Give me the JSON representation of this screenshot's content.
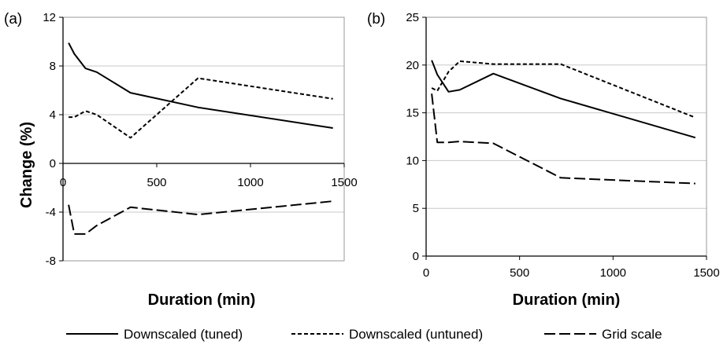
{
  "legend": {
    "items": [
      {
        "label": "Downscaled (tuned)",
        "dash": "solid"
      },
      {
        "label": "Downscaled (untuned)",
        "dash": "short"
      },
      {
        "label": "Grid scale",
        "dash": "long"
      }
    ]
  },
  "chart_data": [
    {
      "type": "line",
      "panel_label": "(a)",
      "xlabel": "Duration (min)",
      "ylabel": "Change (%)",
      "xlim": [
        0,
        1500
      ],
      "ylim": [
        -8,
        12
      ],
      "xticks": [
        0,
        500,
        1000,
        1500
      ],
      "yticks": [
        -8,
        -4,
        0,
        4,
        8,
        12
      ],
      "grid": true,
      "series": [
        {
          "name": "Downscaled (tuned)",
          "dash": "solid",
          "x": [
            30,
            60,
            120,
            180,
            360,
            720,
            1440
          ],
          "y": [
            9.9,
            9.0,
            7.8,
            7.5,
            5.8,
            4.6,
            2.9
          ]
        },
        {
          "name": "Downscaled (untuned)",
          "dash": "short",
          "x": [
            30,
            60,
            120,
            180,
            360,
            720,
            1440
          ],
          "y": [
            3.8,
            3.8,
            4.3,
            4.0,
            2.1,
            7.0,
            5.3
          ]
        },
        {
          "name": "Grid scale",
          "dash": "long",
          "x": [
            30,
            60,
            120,
            180,
            360,
            720,
            1440
          ],
          "y": [
            -3.4,
            -5.8,
            -5.8,
            -5.1,
            -3.6,
            -4.2,
            -3.1
          ]
        }
      ]
    },
    {
      "type": "line",
      "panel_label": "(b)",
      "xlabel": "Duration (min)",
      "ylabel": "",
      "xlim": [
        0,
        1500
      ],
      "ylim": [
        0,
        25
      ],
      "xticks": [
        0,
        500,
        1000,
        1500
      ],
      "yticks": [
        0,
        5,
        10,
        15,
        20,
        25
      ],
      "grid": true,
      "series": [
        {
          "name": "Downscaled (tuned)",
          "dash": "solid",
          "x": [
            30,
            60,
            120,
            180,
            360,
            720,
            1440
          ],
          "y": [
            20.5,
            19.0,
            17.2,
            17.4,
            19.1,
            16.5,
            12.4
          ]
        },
        {
          "name": "Downscaled (untuned)",
          "dash": "short",
          "x": [
            30,
            60,
            120,
            180,
            360,
            720,
            1440
          ],
          "y": [
            17.6,
            17.3,
            19.3,
            20.4,
            20.1,
            20.1,
            14.5
          ]
        },
        {
          "name": "Grid scale",
          "dash": "long",
          "x": [
            30,
            60,
            120,
            180,
            360,
            720,
            1440
          ],
          "y": [
            17.0,
            11.9,
            11.9,
            12.0,
            11.8,
            8.2,
            7.6
          ]
        }
      ]
    }
  ]
}
